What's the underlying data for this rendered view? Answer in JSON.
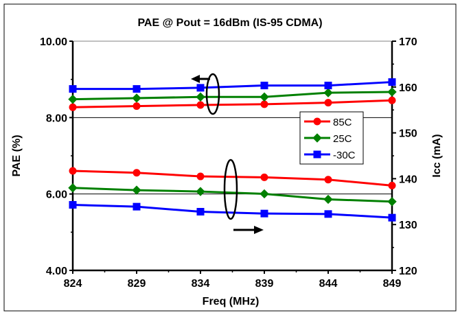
{
  "chart_data": {
    "type": "line",
    "title": "PAE @ Pout = 16dBm (IS-95 CDMA)",
    "xlabel": "Freq (MHz)",
    "ylabel": "PAE (%)",
    "y2label": "Icc (mA)",
    "x": [
      824,
      829,
      834,
      839,
      844,
      849
    ],
    "x_tick_labels": [
      "824",
      "829",
      "834",
      "839",
      "844",
      "849"
    ],
    "ylim": [
      4.0,
      10.0
    ],
    "y_tick_labels": [
      "4.00",
      "6.00",
      "8.00",
      "10.00"
    ],
    "y_ticks": [
      4,
      6,
      8,
      10
    ],
    "y2lim": [
      120,
      170
    ],
    "y2_tick_labels": [
      "120",
      "130",
      "140",
      "150",
      "160",
      "170"
    ],
    "y2_ticks": [
      120,
      130,
      140,
      150,
      160,
      170
    ],
    "grid": "horizontal-major",
    "legend_placement": "right-middle",
    "series": [
      {
        "name": "85C",
        "axis": "left",
        "metric": "PAE",
        "color": "#ff0000",
        "marker": "circle",
        "values": [
          8.27,
          8.3,
          8.33,
          8.35,
          8.39,
          8.45
        ]
      },
      {
        "name": "25C",
        "axis": "left",
        "metric": "PAE",
        "color": "#008000",
        "marker": "diamond",
        "values": [
          8.48,
          8.51,
          8.54,
          8.54,
          8.65,
          8.67
        ]
      },
      {
        "name": "-30C",
        "axis": "left",
        "metric": "PAE",
        "color": "#0000ff",
        "marker": "square",
        "values": [
          8.75,
          8.75,
          8.78,
          8.84,
          8.84,
          8.93
        ]
      },
      {
        "name": "85C",
        "axis": "right",
        "metric": "Icc",
        "color": "#ff0000",
        "marker": "circle",
        "values": [
          141.7,
          141.3,
          140.5,
          140.3,
          139.8,
          138.5
        ]
      },
      {
        "name": "25C",
        "axis": "right",
        "metric": "Icc",
        "color": "#008000",
        "marker": "diamond",
        "values": [
          138.0,
          137.5,
          137.2,
          136.7,
          135.5,
          135.0
        ]
      },
      {
        "name": "-30C",
        "axis": "right",
        "metric": "Icc",
        "color": "#0000ff",
        "marker": "square",
        "values": [
          134.3,
          133.9,
          132.8,
          132.4,
          132.3,
          131.5
        ]
      }
    ],
    "legend": [
      "85C",
      "25C",
      "-30C"
    ]
  }
}
